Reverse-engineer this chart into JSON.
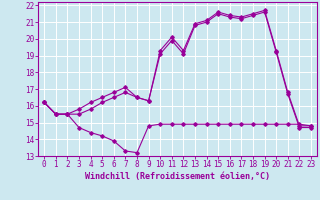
{
  "xlabel": "Windchill (Refroidissement éolien,°C)",
  "bg_color": "#cde8f0",
  "line_color": "#990099",
  "grid_color": "#ffffff",
  "xlim": [
    -0.5,
    23.5
  ],
  "ylim": [
    13,
    22.2
  ],
  "yticks": [
    13,
    14,
    15,
    16,
    17,
    18,
    19,
    20,
    21,
    22
  ],
  "xticks": [
    0,
    1,
    2,
    3,
    4,
    5,
    6,
    7,
    8,
    9,
    10,
    11,
    12,
    13,
    14,
    15,
    16,
    17,
    18,
    19,
    20,
    21,
    22,
    23
  ],
  "series1_x": [
    0,
    1,
    2,
    3,
    4,
    5,
    6,
    7,
    8,
    9,
    10,
    11,
    12,
    13,
    14,
    15,
    16,
    17,
    18,
    19,
    20,
    21,
    22,
    23
  ],
  "series1_y": [
    16.2,
    15.5,
    15.5,
    15.8,
    16.2,
    16.5,
    16.8,
    17.1,
    16.5,
    16.3,
    19.3,
    20.1,
    19.3,
    20.9,
    21.1,
    21.6,
    21.4,
    21.3,
    21.5,
    21.7,
    19.3,
    16.8,
    14.8,
    14.8
  ],
  "series2_x": [
    0,
    1,
    2,
    3,
    4,
    5,
    6,
    7,
    8,
    9,
    10,
    11,
    12,
    13,
    14,
    15,
    16,
    17,
    18,
    19,
    20,
    21,
    22,
    23
  ],
  "series2_y": [
    16.2,
    15.5,
    15.5,
    14.7,
    14.4,
    14.2,
    13.9,
    13.3,
    13.2,
    14.8,
    14.9,
    14.9,
    14.9,
    14.9,
    14.9,
    14.9,
    14.9,
    14.9,
    14.9,
    14.9,
    14.9,
    14.9,
    14.9,
    14.8
  ],
  "series3_x": [
    0,
    1,
    2,
    3,
    4,
    5,
    6,
    7,
    8,
    9,
    10,
    11,
    12,
    13,
    14,
    15,
    16,
    17,
    18,
    19,
    20,
    21,
    22,
    23
  ],
  "series3_y": [
    16.2,
    15.5,
    15.5,
    15.5,
    15.8,
    16.2,
    16.5,
    16.8,
    16.5,
    16.3,
    19.1,
    19.9,
    19.1,
    20.8,
    21.0,
    21.5,
    21.3,
    21.2,
    21.4,
    21.6,
    19.2,
    16.7,
    14.7,
    14.7
  ],
  "tick_fontsize": 5.5,
  "xlabel_fontsize": 6.0
}
